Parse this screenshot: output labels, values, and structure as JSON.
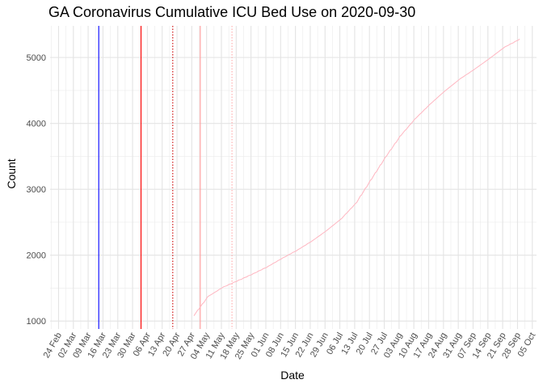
{
  "chart_data": {
    "type": "line",
    "title": "GA Coronavirus Cumulative ICU Bed Use on 2020-09-30",
    "xlabel": "Date",
    "ylabel": "Count",
    "x_tick_labels": [
      "24 Feb",
      "02 Mar",
      "09 Mar",
      "16 Mar",
      "23 Mar",
      "30 Mar",
      "06 Apr",
      "13 Apr",
      "20 Apr",
      "27 Apr",
      "04 May",
      "11 May",
      "18 May",
      "25 May",
      "01 Jun",
      "08 Jun",
      "15 Jun",
      "22 Jun",
      "29 Jun",
      "06 Jul",
      "13 Jul",
      "20 Jul",
      "27 Jul",
      "03 Aug",
      "10 Aug",
      "17 Aug",
      "24 Aug",
      "31 Aug",
      "07 Sep",
      "14 Sep",
      "21 Sep",
      "28 Sep",
      "05 Oct"
    ],
    "y_ticks": [
      1000,
      2000,
      3000,
      4000,
      5000
    ],
    "xlim": [
      "2020-02-20",
      "2020-10-07"
    ],
    "ylim": [
      880,
      5480
    ],
    "grid": true,
    "legend": "none",
    "vlines": [
      {
        "date": "2020-03-14",
        "color": "#0000ff",
        "style": "solid"
      },
      {
        "date": "2020-04-03",
        "color": "#ff0000",
        "style": "solid"
      },
      {
        "date": "2020-04-18",
        "color": "#cc0000",
        "style": "dotted"
      },
      {
        "date": "2020-05-01",
        "color": "#ff9999",
        "style": "solid"
      },
      {
        "date": "2020-05-16",
        "color": "#ffaaaa",
        "style": "dotted"
      }
    ],
    "series": [
      {
        "color": "#ffb6c1",
        "x": [
          "2020-04-28",
          "2020-05-05",
          "2020-05-12",
          "2020-05-19",
          "2020-05-26",
          "2020-06-02",
          "2020-06-09",
          "2020-06-16",
          "2020-06-23",
          "2020-06-30",
          "2020-07-07",
          "2020-07-14",
          "2020-07-21",
          "2020-07-28",
          "2020-08-04",
          "2020-08-11",
          "2020-08-18",
          "2020-08-25",
          "2020-09-01",
          "2020-09-08",
          "2020-09-15",
          "2020-09-22",
          "2020-09-29"
        ],
        "values": [
          1080,
          1380,
          1520,
          1620,
          1720,
          1830,
          1960,
          2080,
          2220,
          2380,
          2560,
          2800,
          3150,
          3500,
          3820,
          4080,
          4300,
          4500,
          4680,
          4830,
          4990,
          5160,
          5280
        ]
      }
    ]
  }
}
